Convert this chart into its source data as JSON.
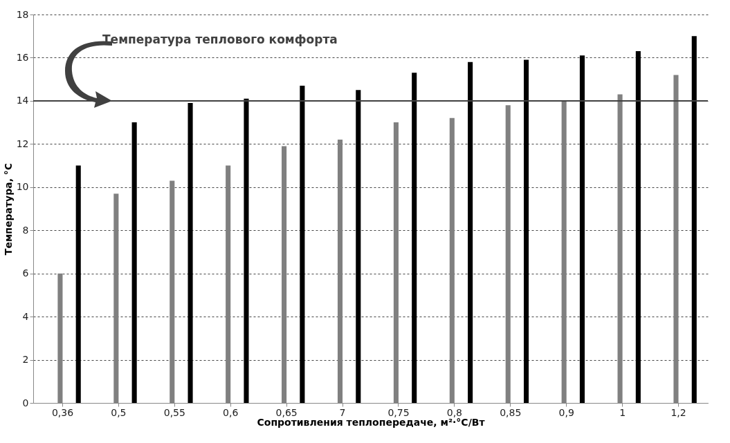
{
  "chart_data": {
    "type": "bar",
    "xlabel": "Сопротивления теплопередаче, м²·°C/Вт",
    "ylabel": "Температура, °C",
    "categories": [
      "0,36",
      "0,5",
      "0,55",
      "0,6",
      "0,65",
      "7",
      "0,75",
      "0,8",
      "0,85",
      "0,9",
      "1",
      "1,2"
    ],
    "series": [
      {
        "color": "#808080",
        "values": [
          6,
          9.7,
          10.3,
          11,
          11.9,
          12.2,
          13,
          13.2,
          13.8,
          14,
          14.3,
          15.2
        ]
      },
      {
        "color": "#000000",
        "values": [
          11,
          13,
          13.9,
          14.1,
          14.7,
          14.5,
          15.3,
          15.8,
          15.9,
          16.1,
          16.3,
          17
        ]
      }
    ],
    "ylim": [
      0,
      18
    ],
    "yticks": [
      0,
      2,
      4,
      6,
      8,
      10,
      12,
      14,
      16,
      18
    ],
    "grid": "y",
    "legend": false,
    "ref_lines": [
      {
        "axis": "y",
        "value": 14,
        "label": "Температура теплового комфорта",
        "color": "#404040",
        "line_style": "solid"
      }
    ]
  }
}
